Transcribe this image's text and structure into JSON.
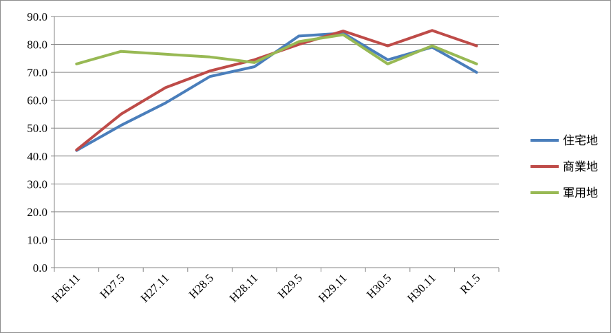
{
  "chart_data": {
    "type": "line",
    "title": "",
    "xlabel": "",
    "ylabel": "",
    "categories": [
      "H26.11",
      "H27.5",
      "H27.11",
      "H28.5",
      "H28.11",
      "H29.5",
      "H29.11",
      "H30.5",
      "H30.11",
      "R1.5"
    ],
    "ylim": [
      0,
      90
    ],
    "ytick_step": 10,
    "yticks": [
      "0.0",
      "10.0",
      "20.0",
      "30.0",
      "40.0",
      "50.0",
      "60.0",
      "70.0",
      "80.0",
      "90.0"
    ],
    "grid": true,
    "legend_position": "right",
    "series": [
      {
        "name": "住宅地",
        "color": "#4a7ebb",
        "values": [
          42.0,
          51.0,
          59.0,
          68.5,
          72.0,
          83.0,
          84.0,
          74.5,
          79.0,
          70.0
        ]
      },
      {
        "name": "商業地",
        "color": "#be4b48",
        "values": [
          42.2,
          55.0,
          64.5,
          70.5,
          74.5,
          80.0,
          84.8,
          79.5,
          85.0,
          79.5
        ]
      },
      {
        "name": "軍用地",
        "color": "#98b954",
        "values": [
          73.0,
          77.5,
          76.5,
          75.5,
          73.5,
          81.0,
          83.5,
          73.0,
          79.5,
          73.0
        ]
      }
    ]
  }
}
